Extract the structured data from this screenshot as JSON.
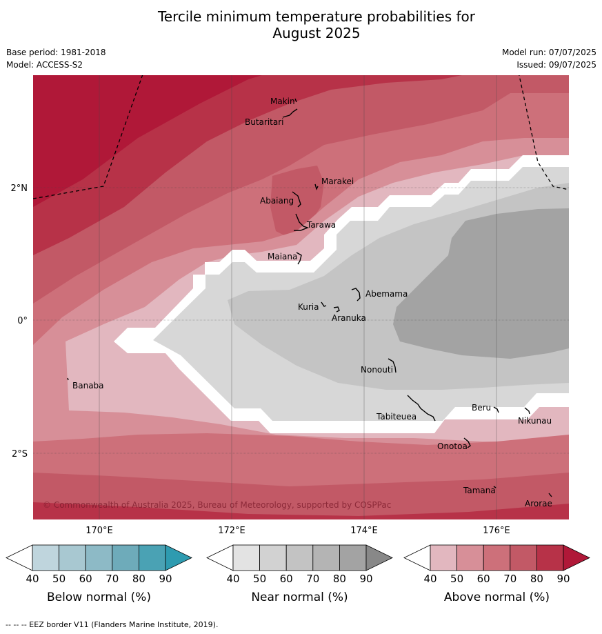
{
  "title": {
    "line1": "Tercile minimum temperature probabilities for",
    "line2": "August 2025"
  },
  "meta": {
    "base_period": "Base period: 1981-2018",
    "model": "Model: ACCESS-S2",
    "model_run": "Model run: 07/07/2025",
    "issued": "Issued: 09/07/2025"
  },
  "map": {
    "lat_labels": [
      "2°N",
      "0°",
      "2°S"
    ],
    "lon_labels": [
      "170°E",
      "172°E",
      "174°E",
      "176°E"
    ],
    "places": [
      "Makin",
      "Butaritari",
      "Marakei",
      "Abaiang",
      "Tarawa",
      "Maiana",
      "Abemama",
      "Kuria",
      "Aranuka",
      "Banaba",
      "Nonouti",
      "Tabiteuea",
      "Beru",
      "Nikunau",
      "Onotoa",
      "Tamana",
      "Arorae"
    ],
    "copyright": "© Commonwealth of Australia 2025, Bureau of Meteorology, supported by COSPPac"
  },
  "legends": [
    {
      "label": "Below normal (%)",
      "ticks": [
        "40",
        "50",
        "60",
        "70",
        "80",
        "90"
      ],
      "colors": [
        "#ffffff",
        "#bfd5dd",
        "#a8c8d1",
        "#8dbac6",
        "#6eabba",
        "#4aa2b4",
        "#2e9bb0"
      ]
    },
    {
      "label": "Near normal (%)",
      "ticks": [
        "40",
        "50",
        "60",
        "70",
        "80",
        "90"
      ],
      "colors": [
        "#ffffff",
        "#e3e3e3",
        "#d2d2d2",
        "#c3c3c3",
        "#b4b4b4",
        "#a3a3a3",
        "#888888"
      ]
    },
    {
      "label": "Above normal (%)",
      "ticks": [
        "40",
        "50",
        "60",
        "70",
        "80",
        "90"
      ],
      "colors": [
        "#ffffff",
        "#e2b7bf",
        "#d78f98",
        "#cd707a",
        "#c25966",
        "#b73248",
        "#b01838"
      ]
    }
  ],
  "footer": "--  --  -- EEZ border V11 (Flanders Marine Institute, 2019)."
}
